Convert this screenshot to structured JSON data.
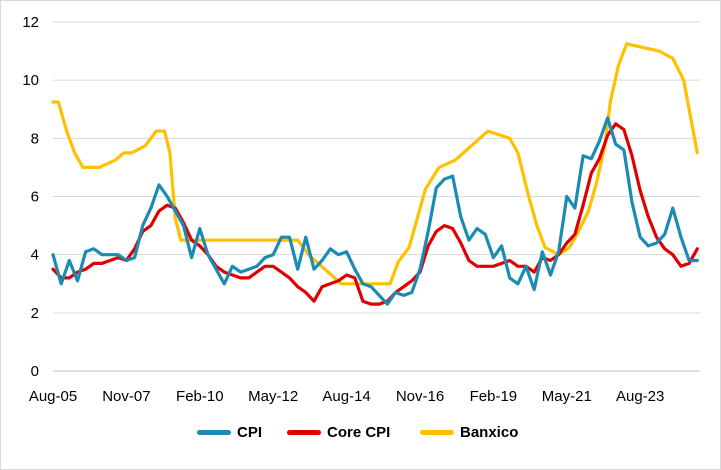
{
  "chart_data": {
    "type": "line",
    "title": "",
    "xlabel": "",
    "ylabel": "",
    "ylim": [
      0,
      12
    ],
    "yticks": [
      0,
      2,
      4,
      6,
      8,
      10,
      12
    ],
    "xtick_labels": [
      "Aug-05",
      "Nov-07",
      "Feb-10",
      "May-12",
      "Aug-14",
      "Nov-16",
      "Feb-19",
      "May-21",
      "Aug-23"
    ],
    "xlim": [
      "2005-08",
      "2025-06"
    ],
    "grid": "horizontal",
    "legend": "bottom",
    "series": [
      {
        "name": "CPI",
        "color": "#1a8bb4",
        "x": [
          "2005-08",
          "2005-11",
          "2006-02",
          "2006-05",
          "2006-08",
          "2006-11",
          "2007-02",
          "2007-05",
          "2007-08",
          "2007-11",
          "2008-02",
          "2008-05",
          "2008-08",
          "2008-11",
          "2009-02",
          "2009-05",
          "2009-08",
          "2009-11",
          "2010-02",
          "2010-05",
          "2010-08",
          "2010-11",
          "2011-02",
          "2011-05",
          "2011-08",
          "2011-11",
          "2012-02",
          "2012-05",
          "2012-08",
          "2012-11",
          "2013-02",
          "2013-05",
          "2013-08",
          "2013-11",
          "2014-02",
          "2014-05",
          "2014-08",
          "2014-11",
          "2015-02",
          "2015-05",
          "2015-08",
          "2015-11",
          "2016-02",
          "2016-05",
          "2016-08",
          "2016-11",
          "2017-02",
          "2017-05",
          "2017-08",
          "2017-11",
          "2018-02",
          "2018-05",
          "2018-08",
          "2018-11",
          "2019-02",
          "2019-05",
          "2019-08",
          "2019-11",
          "2020-02",
          "2020-05",
          "2020-08",
          "2020-11",
          "2021-02",
          "2021-05",
          "2021-08",
          "2021-11",
          "2022-02",
          "2022-05",
          "2022-08",
          "2022-11",
          "2023-02",
          "2023-05",
          "2023-08",
          "2023-11",
          "2024-02",
          "2024-05",
          "2024-08",
          "2024-11",
          "2025-02",
          "2025-05"
        ],
        "values": [
          4.0,
          3.0,
          3.8,
          3.1,
          4.1,
          4.2,
          4.0,
          4.0,
          4.0,
          3.8,
          3.9,
          5.0,
          5.6,
          6.4,
          6.0,
          5.5,
          5.0,
          3.9,
          4.9,
          4.0,
          3.5,
          3.0,
          3.6,
          3.4,
          3.5,
          3.6,
          3.9,
          4.0,
          4.6,
          4.6,
          3.5,
          4.6,
          3.5,
          3.8,
          4.2,
          4.0,
          4.1,
          3.5,
          3.0,
          2.9,
          2.6,
          2.3,
          2.7,
          2.6,
          2.7,
          3.5,
          4.8,
          6.3,
          6.6,
          6.7,
          5.3,
          4.5,
          4.9,
          4.7,
          3.9,
          4.3,
          3.2,
          3.0,
          3.6,
          2.8,
          4.1,
          3.3,
          4.1,
          6.0,
          5.6,
          7.4,
          7.3,
          7.9,
          8.7,
          7.8,
          7.6,
          5.8,
          4.6,
          4.3,
          4.4,
          4.7,
          5.6,
          4.6,
          3.8,
          3.8
        ]
      },
      {
        "name": "Core CPI",
        "color": "#e00000",
        "x": [
          "2005-08",
          "2005-11",
          "2006-02",
          "2006-05",
          "2006-08",
          "2006-11",
          "2007-02",
          "2007-05",
          "2007-08",
          "2007-11",
          "2008-02",
          "2008-05",
          "2008-08",
          "2008-11",
          "2009-02",
          "2009-05",
          "2009-08",
          "2009-11",
          "2010-02",
          "2010-05",
          "2010-08",
          "2010-11",
          "2011-02",
          "2011-05",
          "2011-08",
          "2011-11",
          "2012-02",
          "2012-05",
          "2012-08",
          "2012-11",
          "2013-02",
          "2013-05",
          "2013-08",
          "2013-11",
          "2014-02",
          "2014-05",
          "2014-08",
          "2014-11",
          "2015-02",
          "2015-05",
          "2015-08",
          "2015-11",
          "2016-02",
          "2016-05",
          "2016-08",
          "2016-11",
          "2017-02",
          "2017-05",
          "2017-08",
          "2017-11",
          "2018-02",
          "2018-05",
          "2018-08",
          "2018-11",
          "2019-02",
          "2019-05",
          "2019-08",
          "2019-11",
          "2020-02",
          "2020-05",
          "2020-08",
          "2020-11",
          "2021-02",
          "2021-05",
          "2021-08",
          "2021-11",
          "2022-02",
          "2022-05",
          "2022-08",
          "2022-11",
          "2023-02",
          "2023-05",
          "2023-08",
          "2023-11",
          "2024-02",
          "2024-05",
          "2024-08",
          "2024-11",
          "2025-02",
          "2025-05"
        ],
        "values": [
          3.5,
          3.2,
          3.2,
          3.4,
          3.5,
          3.7,
          3.7,
          3.8,
          3.9,
          3.8,
          4.2,
          4.8,
          5.0,
          5.5,
          5.7,
          5.6,
          5.1,
          4.5,
          4.3,
          4.0,
          3.6,
          3.4,
          3.3,
          3.2,
          3.2,
          3.4,
          3.6,
          3.6,
          3.4,
          3.2,
          2.9,
          2.7,
          2.4,
          2.9,
          3.0,
          3.1,
          3.3,
          3.2,
          2.4,
          2.3,
          2.3,
          2.4,
          2.7,
          2.9,
          3.1,
          3.4,
          4.3,
          4.8,
          5.0,
          4.9,
          4.4,
          3.8,
          3.6,
          3.6,
          3.6,
          3.7,
          3.8,
          3.6,
          3.6,
          3.4,
          3.9,
          3.8,
          4.0,
          4.4,
          4.7,
          5.7,
          6.8,
          7.3,
          8.1,
          8.5,
          8.3,
          7.4,
          6.2,
          5.3,
          4.6,
          4.2,
          4.0,
          3.6,
          3.7,
          4.2
        ]
      },
      {
        "name": "Banxico",
        "color": "#ffc000",
        "x": [
          "2005-08",
          "2005-10",
          "2006-01",
          "2006-04",
          "2006-07",
          "2007-01",
          "2007-07",
          "2007-10",
          "2008-01",
          "2008-06",
          "2008-10",
          "2009-01",
          "2009-03",
          "2009-05",
          "2009-07",
          "2013-02",
          "2013-06",
          "2014-06",
          "2015-12",
          "2016-03",
          "2016-07",
          "2016-10",
          "2017-01",
          "2017-06",
          "2017-12",
          "2018-06",
          "2018-12",
          "2019-08",
          "2019-11",
          "2020-03",
          "2020-06",
          "2020-09",
          "2021-02",
          "2021-06",
          "2021-09",
          "2022-01",
          "2022-04",
          "2022-07",
          "2022-09",
          "2022-12",
          "2023-03",
          "2024-03",
          "2024-08",
          "2024-12",
          "2025-02",
          "2025-05"
        ],
        "values": [
          9.25,
          9.25,
          8.25,
          7.5,
          7.0,
          7.0,
          7.25,
          7.5,
          7.5,
          7.75,
          8.25,
          8.25,
          7.5,
          5.25,
          4.5,
          4.5,
          4.0,
          3.0,
          3.0,
          3.75,
          4.25,
          5.25,
          6.25,
          7.0,
          7.25,
          7.75,
          8.25,
          8.0,
          7.5,
          6.0,
          5.0,
          4.25,
          4.0,
          4.25,
          4.75,
          5.5,
          6.5,
          7.75,
          9.25,
          10.5,
          11.25,
          11.0,
          10.75,
          10.0,
          9.0,
          7.5
        ]
      }
    ]
  }
}
